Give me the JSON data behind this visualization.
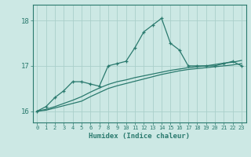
{
  "title": "",
  "xlabel": "Humidex (Indice chaleur)",
  "ylabel": "",
  "bg_color": "#cce8e4",
  "grid_color": "#aacfca",
  "line_color": "#2a7a6e",
  "x_main": [
    0,
    1,
    2,
    3,
    4,
    5,
    6,
    7,
    8,
    9,
    10,
    11,
    12,
    13,
    14,
    15,
    16,
    17,
    18,
    19,
    20,
    21,
    22,
    23
  ],
  "y_main": [
    16.0,
    16.1,
    16.3,
    16.45,
    16.65,
    16.65,
    16.6,
    16.55,
    17.0,
    17.05,
    17.1,
    17.4,
    17.75,
    17.9,
    18.05,
    17.5,
    17.35,
    17.0,
    17.0,
    17.0,
    17.0,
    17.05,
    17.1,
    17.0
  ],
  "y_line2": [
    16.0,
    16.02,
    16.07,
    16.12,
    16.17,
    16.22,
    16.32,
    16.41,
    16.5,
    16.56,
    16.61,
    16.66,
    16.71,
    16.76,
    16.81,
    16.85,
    16.89,
    16.92,
    16.94,
    16.96,
    16.98,
    17.0,
    17.02,
    17.05
  ],
  "y_line3": [
    16.0,
    16.04,
    16.1,
    16.17,
    16.24,
    16.32,
    16.42,
    16.51,
    16.59,
    16.65,
    16.69,
    16.74,
    16.78,
    16.82,
    16.86,
    16.9,
    16.93,
    16.96,
    16.98,
    17.0,
    17.03,
    17.06,
    17.08,
    17.12
  ],
  "yticks": [
    16,
    17,
    18
  ],
  "ylim": [
    15.75,
    18.35
  ],
  "xlim": [
    -0.5,
    23.5
  ]
}
